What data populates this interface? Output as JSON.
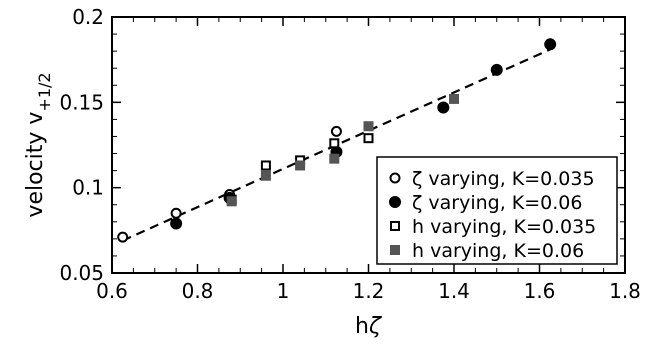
{
  "chart_data": {
    "type": "scatter",
    "title": "",
    "xlabel": "h",
    "xlabel_symbol": "ζ",
    "ylabel": "velocity v",
    "ylabel_subscript": "+1/2",
    "xlim": [
      0.6,
      1.8
    ],
    "ylim": [
      0.05,
      0.2
    ],
    "xticks": [
      "0.6",
      "0.8",
      "1",
      "1.2",
      "1.4",
      "1.6",
      "1.8"
    ],
    "yticks": [
      "0.05",
      "0.1",
      "0.15",
      "0.2"
    ],
    "grid": false,
    "legend_position": "bottom-right",
    "series": [
      {
        "name": "ζ varying, K=0.035",
        "marker": "open-circle",
        "color": "#000000",
        "points": [
          [
            0.625,
            0.071
          ],
          [
            0.75,
            0.085
          ],
          [
            0.875,
            0.096
          ],
          [
            1.125,
            0.133
          ]
        ]
      },
      {
        "name": "ζ varying, K=0.06",
        "marker": "filled-circle",
        "color": "#000000",
        "points": [
          [
            0.75,
            0.079
          ],
          [
            0.875,
            0.094
          ],
          [
            1.125,
            0.121
          ],
          [
            1.375,
            0.147
          ],
          [
            1.5,
            0.169
          ],
          [
            1.625,
            0.184
          ]
        ]
      },
      {
        "name": "h varying, K=0.035",
        "marker": "open-square",
        "color": "#000000",
        "points": [
          [
            0.88,
            0.093
          ],
          [
            0.96,
            0.113
          ],
          [
            1.04,
            0.116
          ],
          [
            1.12,
            0.126
          ],
          [
            1.2,
            0.129
          ]
        ]
      },
      {
        "name": "h varying, K=0.06",
        "marker": "filled-square",
        "color": "#555555",
        "points": [
          [
            0.88,
            0.092
          ],
          [
            0.96,
            0.107
          ],
          [
            1.04,
            0.113
          ],
          [
            1.12,
            0.117
          ],
          [
            1.2,
            0.136
          ],
          [
            1.4,
            0.152
          ]
        ]
      }
    ],
    "fit_line": {
      "style": "dashed",
      "from": [
        0.625,
        0.069
      ],
      "to": [
        1.625,
        0.181
      ]
    }
  }
}
